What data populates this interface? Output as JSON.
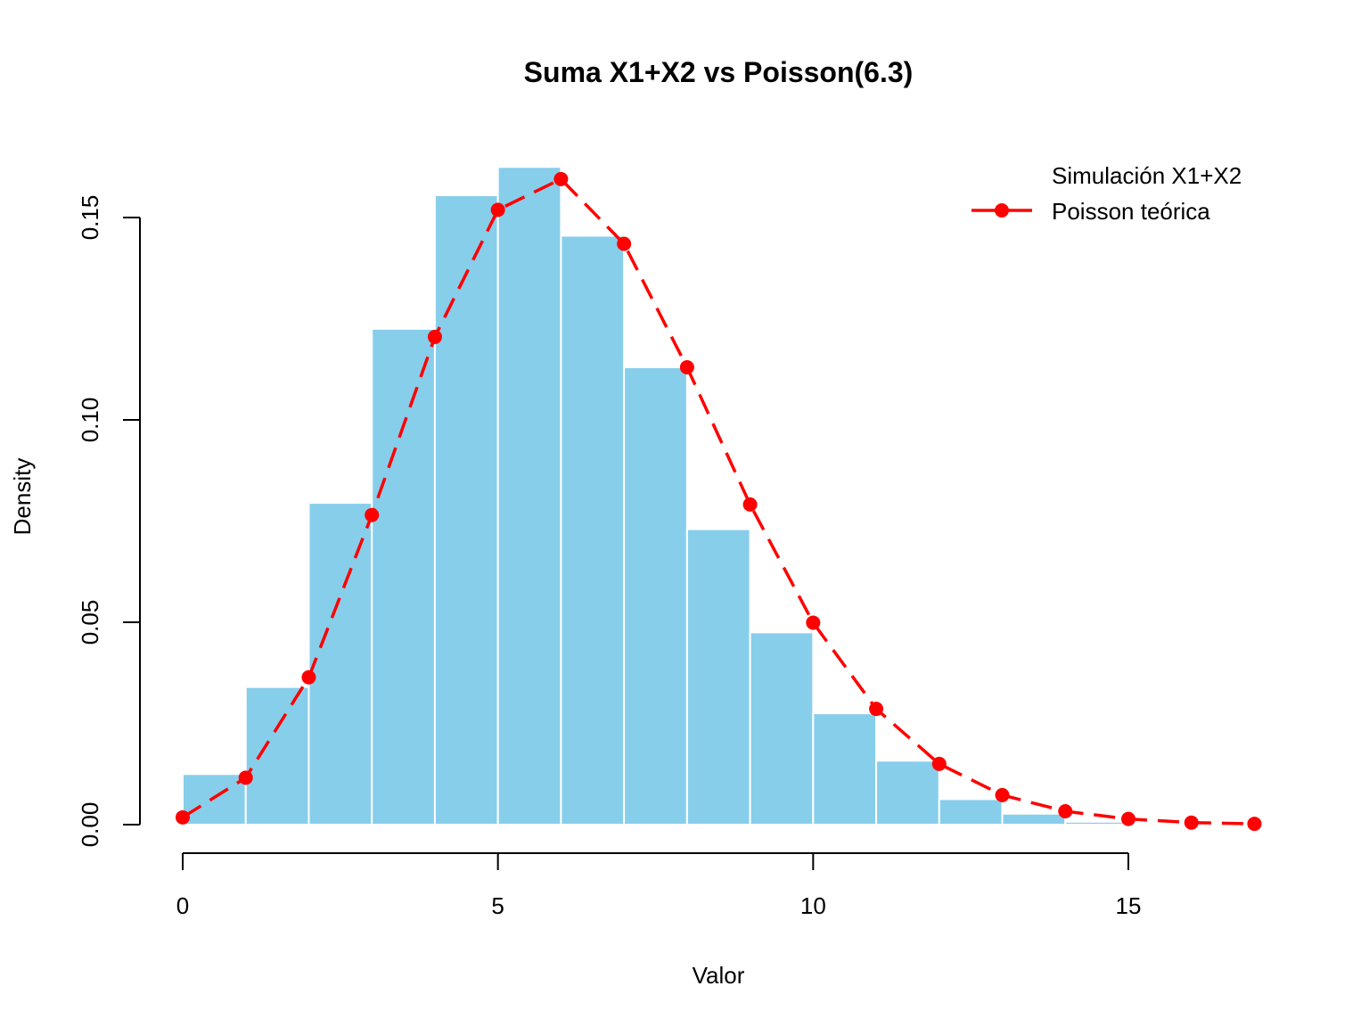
{
  "chart_data": {
    "type": "bar",
    "title": "Suma X1+X2 vs Poisson(6.3)",
    "xlabel": "Valor",
    "ylabel": "Density",
    "xlim": [
      0,
      17
    ],
    "ylim": [
      0,
      0.16
    ],
    "x_ticks": [
      {
        "value": 0,
        "label": "0"
      },
      {
        "value": 5,
        "label": "5"
      },
      {
        "value": 10,
        "label": "10"
      },
      {
        "value": 15,
        "label": "15"
      }
    ],
    "y_ticks": [
      {
        "value": 0,
        "label": "0.00"
      },
      {
        "value": 0.05,
        "label": "0.05"
      },
      {
        "value": 0.1,
        "label": "0.10"
      },
      {
        "value": 0.15,
        "label": "0.15"
      }
    ],
    "grid": false,
    "legend_position": "top-right",
    "histogram": {
      "name": "Simulación X1+X2",
      "color": "#87CEEB",
      "border_color": "#ffffff",
      "bins": [
        {
          "from": 0,
          "to": 1,
          "density": 0.0125
        },
        {
          "from": 1,
          "to": 2,
          "density": 0.034
        },
        {
          "from": 2,
          "to": 3,
          "density": 0.0795
        },
        {
          "from": 3,
          "to": 4,
          "density": 0.1225
        },
        {
          "from": 4,
          "to": 5,
          "density": 0.1555
        },
        {
          "from": 5,
          "to": 6,
          "density": 0.1625
        },
        {
          "from": 6,
          "to": 7,
          "density": 0.1455
        },
        {
          "from": 7,
          "to": 8,
          "density": 0.113
        },
        {
          "from": 8,
          "to": 9,
          "density": 0.073
        },
        {
          "from": 9,
          "to": 10,
          "density": 0.0475
        },
        {
          "from": 10,
          "to": 11,
          "density": 0.0275
        },
        {
          "from": 11,
          "to": 12,
          "density": 0.0158
        },
        {
          "from": 12,
          "to": 13,
          "density": 0.0063
        },
        {
          "from": 13,
          "to": 14,
          "density": 0.0027
        },
        {
          "from": 14,
          "to": 15,
          "density": 0.0007
        }
      ]
    },
    "series": [
      {
        "name": "Poisson teórica",
        "type": "line",
        "color": "#FF0000",
        "line_style": "dashed",
        "marker": "filled-circle",
        "x": [
          0,
          1,
          2,
          3,
          4,
          5,
          6,
          7,
          8,
          9,
          10,
          11,
          12,
          13,
          14,
          15,
          16,
          17
        ],
        "values": [
          0.0018,
          0.0116,
          0.0364,
          0.0765,
          0.1205,
          0.1519,
          0.1595,
          0.1435,
          0.113,
          0.0791,
          0.0499,
          0.0286,
          0.015,
          0.0073,
          0.0033,
          0.0014,
          0.0005,
          0.0002
        ]
      }
    ]
  }
}
